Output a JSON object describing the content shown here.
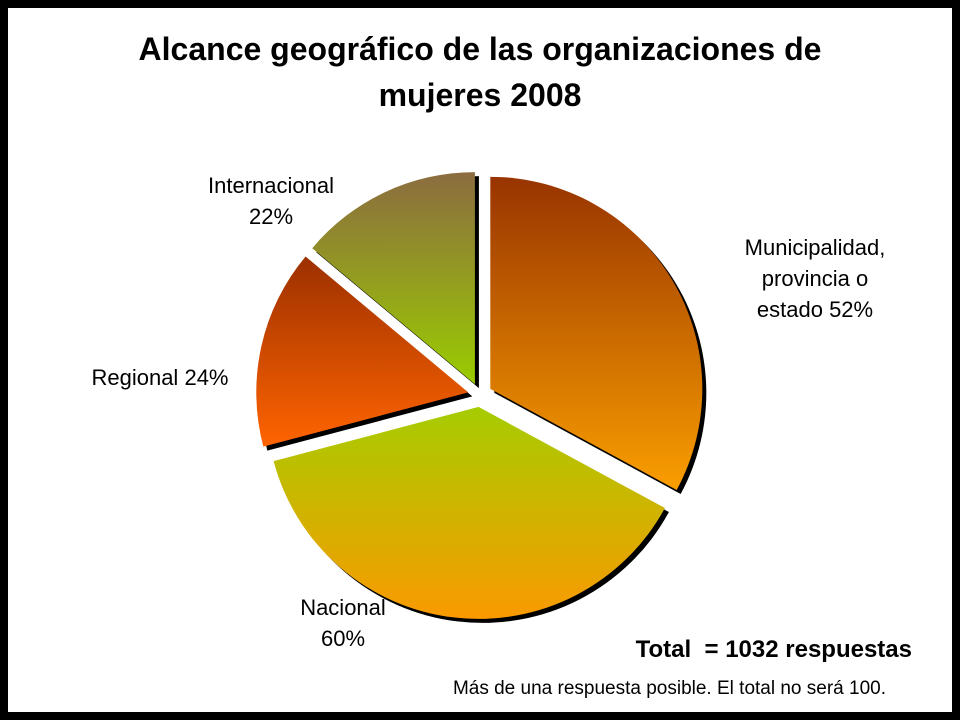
{
  "chart_data": {
    "type": "pie",
    "title": "Alcance geográfico de las organizaciones de mujeres 2008",
    "categories": [
      "Municipalidad, provincia o estado",
      "Nacional",
      "Regional",
      "Internacional"
    ],
    "values": [
      52,
      60,
      24,
      22
    ],
    "value_labels": [
      "52%",
      "60%",
      "24%",
      "22%"
    ],
    "colors": [
      [
        "#983400",
        "#fa9e00"
      ],
      [
        "#a6cc00",
        "#fa9a00"
      ],
      [
        "#9c3000",
        "#ff6400"
      ],
      [
        "#8c6c40",
        "#9acc00"
      ]
    ],
    "total_note": "Total  = 1032 respuestas",
    "footnote": "Más de una respuesta posible. El total no será 100."
  }
}
